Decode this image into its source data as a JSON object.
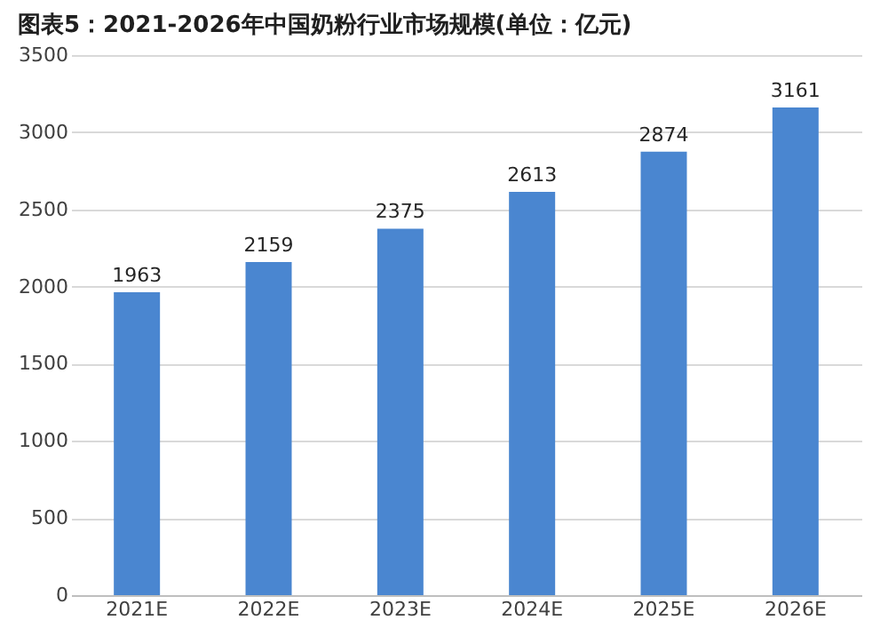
{
  "chart_data": {
    "type": "bar",
    "title": "图表5：2021-2026年中国奶粉行业市场规模(单位：亿元)",
    "categories": [
      "2021E",
      "2022E",
      "2023E",
      "2024E",
      "2025E",
      "2026E"
    ],
    "values": [
      1963,
      2159,
      2375,
      2613,
      2874,
      3161
    ],
    "color": "#4a86d0",
    "ylim": [
      0,
      3500
    ],
    "yticks": [
      0,
      500,
      1000,
      1500,
      2000,
      2500,
      3000,
      3500
    ],
    "grid": "y",
    "data_labels": true
  }
}
